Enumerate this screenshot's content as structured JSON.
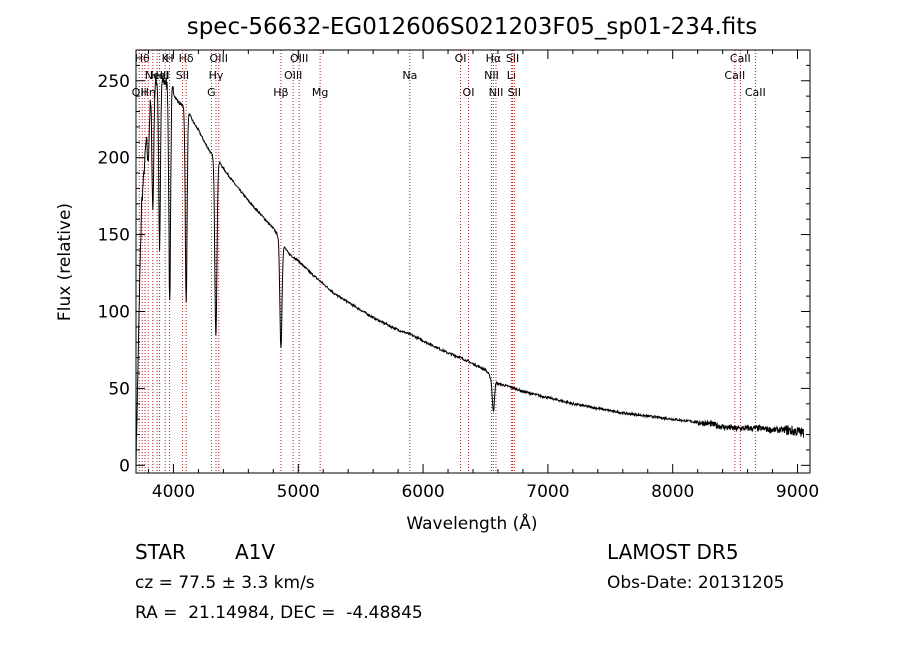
{
  "chart_data": {
    "type": "line",
    "title": "spec-56632-EG012606S021203F05_sp01-234.fits",
    "xlabel": "Wavelength (Å)",
    "ylabel": "Flux (relative)",
    "xlim": [
      3700,
      9100
    ],
    "ylim": [
      -5,
      270
    ],
    "xticks": [
      4000,
      5000,
      6000,
      7000,
      8000,
      9000
    ],
    "yticks": [
      0,
      50,
      100,
      150,
      200,
      250
    ],
    "grid": false,
    "line_color": "#000000",
    "marker_color": "#b22222",
    "series": [
      {
        "x": [
          3700,
          3715,
          3730,
          3745,
          3760,
          3780,
          3800,
          3830,
          3860,
          3890,
          3920,
          3950,
          3975,
          3990,
          4010,
          4040,
          4070,
          4100,
          4130,
          4160,
          4200,
          4250,
          4300,
          4330,
          4360,
          4400,
          4500,
          4600,
          4700,
          4800,
          4850,
          4880,
          4920,
          4950,
          5000,
          5100,
          5200,
          5300,
          5400,
          5500,
          5600,
          5700,
          5800,
          5900,
          6000,
          6100,
          6200,
          6300,
          6400,
          6500,
          6520,
          6540,
          6563,
          6585,
          6600,
          6700,
          6800,
          6900,
          7000,
          7200,
          7400,
          7600,
          7800,
          8000,
          8200,
          8300,
          8400,
          8500,
          8600,
          8700,
          8800,
          8900,
          9000,
          9050
        ],
        "y": [
          2,
          60,
          120,
          170,
          185,
          210,
          230,
          245,
          250,
          252,
          250,
          248,
          246,
          244,
          240,
          236,
          234,
          231,
          228,
          223,
          218,
          210,
          203,
          200,
          198,
          193,
          182,
          172,
          163,
          154,
          148,
          143,
          138,
          136,
          133,
          125,
          118,
          111,
          106,
          101,
          96,
          92,
          88,
          85,
          81,
          77,
          73,
          70,
          66,
          62,
          60,
          57,
          55,
          54,
          53,
          51,
          48,
          46,
          44,
          40,
          37,
          34,
          32,
          30,
          28,
          27,
          25,
          24,
          24,
          24,
          23,
          23,
          22,
          21
        ]
      }
    ],
    "absorption_lines": [
      {
        "x": 3798,
        "depth": 30
      },
      {
        "x": 3835,
        "depth": 80
      },
      {
        "x": 3889,
        "depth": 110
      },
      {
        "x": 3970,
        "depth": 140
      },
      {
        "x": 4102,
        "depth": 125
      },
      {
        "x": 4340,
        "depth": 115
      },
      {
        "x": 4861,
        "depth": 70
      },
      {
        "x": 6563,
        "depth": 20
      }
    ],
    "line_markers": [
      {
        "x": 3726,
        "label": "OII",
        "row": 3
      },
      {
        "x": 3750,
        "label": "Hθ",
        "row": 1
      },
      {
        "x": 3772,
        "label": "",
        "row": 0
      },
      {
        "x": 3798,
        "label": "Hη",
        "row": 3
      },
      {
        "x": 3835,
        "label": "",
        "row": 0
      },
      {
        "x": 3869,
        "label": "NeIII",
        "row": 2
      },
      {
        "x": 3889,
        "label": "HeI",
        "row": 2
      },
      {
        "x": 3934,
        "label": "K",
        "row": 1
      },
      {
        "x": 3969,
        "label": "H",
        "row": 1
      },
      {
        "x": 4072,
        "label": "SII",
        "row": 2
      },
      {
        "x": 4102,
        "label": "Hδ",
        "row": 1
      },
      {
        "x": 4304,
        "label": "G",
        "row": 3
      },
      {
        "x": 4341,
        "label": "Hγ",
        "row": 2
      },
      {
        "x": 4363,
        "label": "OIII",
        "row": 1
      },
      {
        "x": 4861,
        "label": "Hβ",
        "row": 3
      },
      {
        "x": 4959,
        "label": "OIII",
        "row": 2
      },
      {
        "x": 5007,
        "label": "OIII",
        "row": 1
      },
      {
        "x": 5175,
        "label": "Mg",
        "row": 3
      },
      {
        "x": 5894,
        "label": "Na",
        "row": 2
      },
      {
        "x": 6300,
        "label": "OI",
        "row": 1
      },
      {
        "x": 6364,
        "label": "OI",
        "row": 3
      },
      {
        "x": 6548,
        "label": "NII",
        "row": 2
      },
      {
        "x": 6563,
        "label": "Hα",
        "row": 1
      },
      {
        "x": 6584,
        "label": "NII",
        "row": 3
      },
      {
        "x": 6707,
        "label": "Li",
        "row": 2
      },
      {
        "x": 6717,
        "label": "SII",
        "row": 1
      },
      {
        "x": 6731,
        "label": "SII",
        "row": 3
      },
      {
        "x": 8498,
        "label": "CaII",
        "row": 2
      },
      {
        "x": 8542,
        "label": "CaII",
        "row": 1
      },
      {
        "x": 8662,
        "label": "CaII",
        "row": 3
      }
    ]
  },
  "info": {
    "class_label": "STAR",
    "subclass": "A1V",
    "survey": "LAMOST DR5",
    "redshift": "cz = 77.5 ± 3.3 km/s",
    "obs_date": "Obs-Date: 20131205",
    "coords": "RA =  21.14984, DEC =  -4.48845"
  }
}
